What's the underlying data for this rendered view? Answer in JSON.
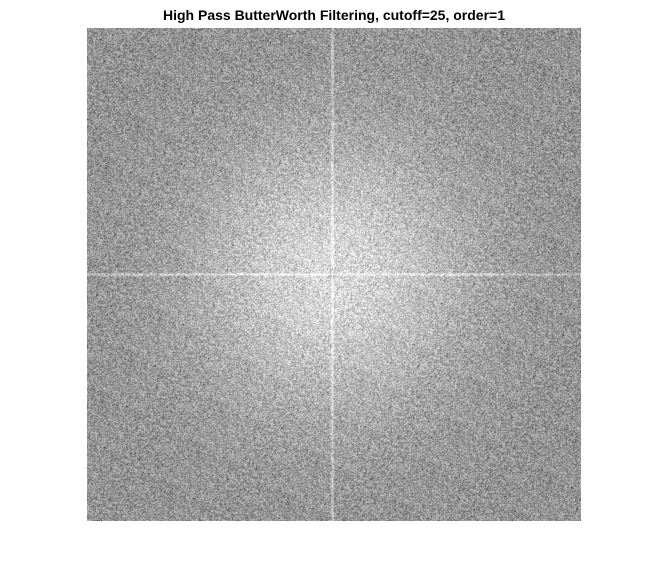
{
  "figure": {
    "title": "High Pass ButterWorth Filtering, cutoff=25, order=1",
    "image": {
      "kind": "grayscale-fourier-spectrum",
      "background_gray": "#9a9a9a",
      "center_glow": "#e6e6e6",
      "axis_lines_color": "#ffffff"
    }
  }
}
